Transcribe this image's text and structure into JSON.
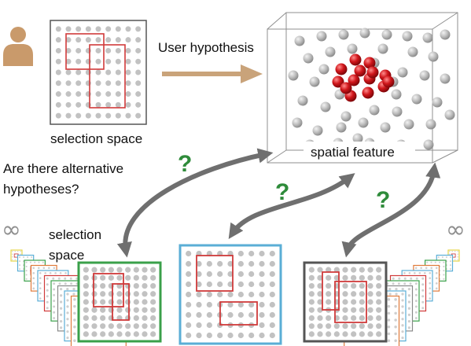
{
  "labels": {
    "selection_space_top": "selection space",
    "user_hypothesis": "User hypothesis",
    "spatial_feature": "spatial feature",
    "question_line1": "Are there alternative",
    "question_line2": "hypotheses?",
    "selection_space_bottom_line1": "selection",
    "selection_space_bottom_line2": "space",
    "infinity_left": "∞",
    "infinity_right": "∞",
    "question_mark_1": "?",
    "question_mark_2": "?",
    "question_mark_3": "?"
  },
  "icons": {
    "user": "person-icon",
    "arrow": "arrow-right-icon"
  },
  "colors": {
    "dot": "#c2c2c2",
    "selection": "#d03a3a",
    "arrow_main": "#c9a37a",
    "arrow_gray": "#6f6f6f",
    "question": "#2e8b3a",
    "frame_green": "#3aa04a",
    "frame_blue": "#5aaed6",
    "frame_dark": "#555555",
    "sphere_gray": "#b9b9b9",
    "sphere_red": "#c8161b",
    "person": "#c99a6b"
  }
}
